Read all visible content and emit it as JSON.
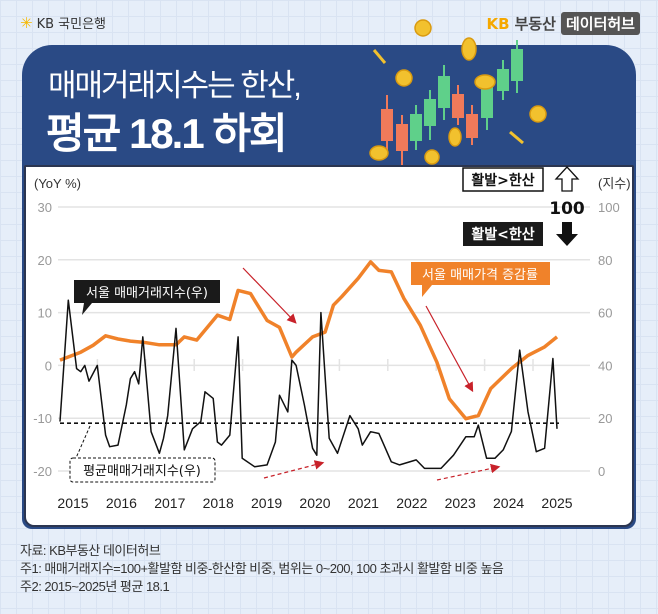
{
  "header": {
    "bank_logo": "KB 국민은행",
    "brand_kb": "KB",
    "brand_name": "부동산",
    "brand_box": "데이터허브"
  },
  "title": {
    "line1": "매매거래지수는 한산,",
    "line2": "평균 18.1 하회"
  },
  "legend_boxes": {
    "active_gt": "활발>한산",
    "active_lt": "활발<한산",
    "threshold": "100"
  },
  "footer": {
    "source": "자료: KB부동산 데이터허브",
    "note1": "주1: 매매거래지수=100+활발함 비중-한산함 비중, 범위는 0~200, 100 초과시 활발함 비중 높음",
    "note2": "주2: 2015~2025년 평균 18.1"
  },
  "colors": {
    "orange": "#f0822a",
    "navy": "#2a4a85",
    "arrow_red": "#c8222a"
  },
  "chart_data": {
    "type": "line",
    "x_unit": "months since Jan 2015",
    "ylabel_left": "(YoY %)",
    "ylabel_right": "(지수)",
    "ylim_left": [
      -20,
      30
    ],
    "ylim_right": [
      0,
      100
    ],
    "yticks_left": [
      "30",
      "20",
      "10",
      "0",
      "-10",
      "-20"
    ],
    "yticks_right": [
      "100",
      "80",
      "60",
      "40",
      "20",
      "0"
    ],
    "xticks": [
      "2015",
      "2016",
      "2017",
      "2018",
      "2019",
      "2020",
      "2021",
      "2022",
      "2023",
      "2024",
      "2025"
    ],
    "grid": true,
    "average_line": {
      "label": "평균매매거래지수(우)",
      "value": 18.1
    },
    "series": [
      {
        "name": "서울 매매가격 증감률",
        "axis": "left",
        "color": "#f0822a",
        "x": [
          0,
          5,
          8,
          11,
          14,
          17,
          20,
          24,
          28,
          30,
          33,
          38,
          41,
          43,
          46,
          50,
          53,
          56,
          57,
          61,
          64,
          66,
          68,
          72,
          75,
          77,
          80,
          83,
          87,
          91,
          94,
          98,
          101,
          104,
          109,
          113,
          117,
          120
        ],
        "y": [
          1,
          2.5,
          3.8,
          5.6,
          5,
          4.6,
          4.4,
          3.9,
          3.9,
          5.4,
          4.8,
          9.5,
          8.7,
          14.2,
          13.6,
          8.5,
          7.2,
          1.6,
          2.5,
          5.4,
          6.3,
          11.4,
          13,
          16.5,
          19.6,
          18,
          17.7,
          12.7,
          7.6,
          0.6,
          -6.3,
          -10.1,
          -9.5,
          -4.4,
          -0.6,
          1.9,
          3.5,
          5.4
        ]
      },
      {
        "name": "서울 매매거래지수(우)",
        "axis": "right",
        "color": "#111111",
        "x": [
          0,
          2,
          4,
          5,
          6,
          7,
          9,
          11,
          12,
          14,
          16,
          17,
          18,
          19,
          20,
          22,
          24,
          25,
          26,
          28,
          30,
          32,
          34,
          35,
          37,
          38,
          39,
          41,
          43,
          44,
          47,
          50,
          52,
          53,
          55,
          56,
          57,
          59,
          61,
          62,
          63,
          65,
          67,
          70,
          72,
          73,
          75,
          77,
          80,
          82,
          86,
          88,
          92,
          95,
          98,
          100,
          101,
          103,
          105,
          107,
          109,
          111,
          113,
          115,
          117,
          119,
          120
        ],
        "y": [
          18.7,
          64.7,
          38.8,
          37.6,
          40,
          34,
          40,
          13.6,
          9.2,
          9.8,
          25,
          35,
          37.6,
          33,
          50.8,
          14.9,
          6.7,
          12.4,
          21,
          54,
          8,
          16,
          18.7,
          30,
          27.5,
          11,
          9.8,
          13.6,
          50.8,
          4.8,
          1.6,
          2.3,
          11,
          28.7,
          22.4,
          42,
          40,
          25,
          8.6,
          6,
          60,
          12.4,
          6.7,
          21,
          16,
          9.8,
          14.9,
          14.2,
          3.5,
          2.3,
          4.2,
          1,
          1,
          6,
          13,
          13,
          17.4,
          4.8,
          4.8,
          8,
          15,
          45.8,
          22.4,
          7.3,
          8.6,
          42.6,
          16
        ]
      }
    ]
  }
}
